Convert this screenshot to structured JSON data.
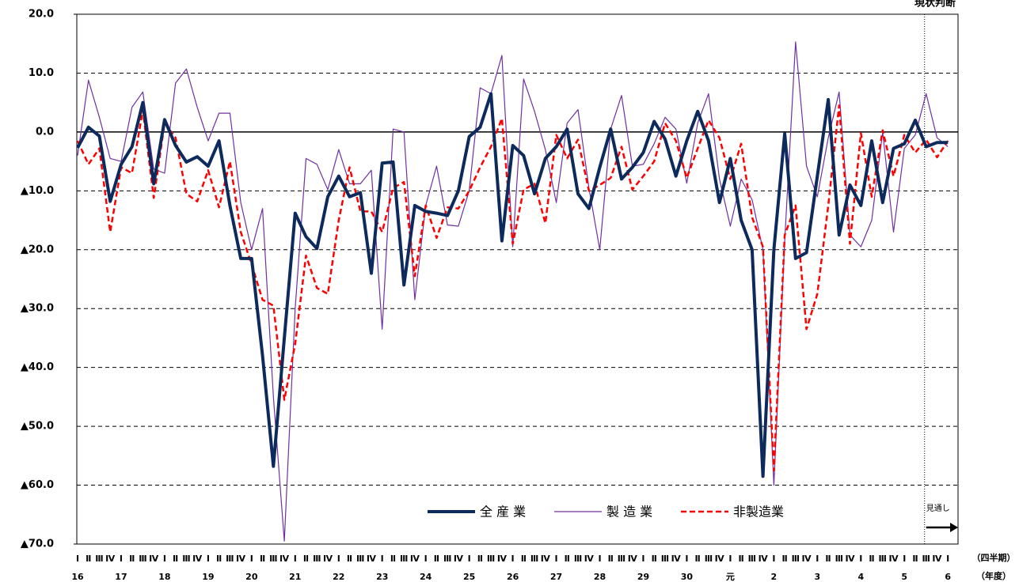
{
  "chart_data": {
    "type": "line",
    "annotations": {
      "current": "現状判断",
      "forecast": "見通し"
    },
    "x_label_quarter": "（四半期）",
    "x_label_year": "（年度）",
    "categories": [
      "Ⅰ",
      "Ⅱ",
      "Ⅲ",
      "Ⅳ",
      "Ⅰ",
      "Ⅱ",
      "Ⅲ",
      "Ⅳ",
      "Ⅰ",
      "Ⅱ",
      "Ⅲ",
      "Ⅳ",
      "Ⅰ",
      "Ⅱ",
      "Ⅲ",
      "Ⅳ",
      "Ⅰ",
      "Ⅱ",
      "Ⅲ",
      "Ⅳ",
      "Ⅰ",
      "Ⅱ",
      "Ⅲ",
      "Ⅳ",
      "Ⅰ",
      "Ⅱ",
      "Ⅲ",
      "Ⅳ",
      "Ⅰ",
      "Ⅱ",
      "Ⅲ",
      "Ⅳ",
      "Ⅰ",
      "Ⅱ",
      "Ⅲ",
      "Ⅳ",
      "Ⅰ",
      "Ⅱ",
      "Ⅲ",
      "Ⅳ",
      "Ⅰ",
      "Ⅱ",
      "Ⅲ",
      "Ⅳ",
      "Ⅰ",
      "Ⅱ",
      "Ⅲ",
      "Ⅳ",
      "Ⅰ",
      "Ⅱ",
      "Ⅲ",
      "Ⅳ",
      "Ⅰ",
      "Ⅱ",
      "Ⅲ",
      "Ⅳ",
      "Ⅰ",
      "Ⅱ",
      "Ⅲ",
      "Ⅳ",
      "Ⅰ",
      "Ⅱ",
      "Ⅲ",
      "Ⅳ",
      "Ⅰ",
      "Ⅱ",
      "Ⅲ",
      "Ⅳ",
      "Ⅰ",
      "Ⅱ",
      "Ⅲ",
      "Ⅳ",
      "Ⅰ",
      "Ⅱ",
      "Ⅲ",
      "Ⅳ",
      "Ⅰ",
      "Ⅱ",
      "Ⅲ",
      "Ⅳ",
      "Ⅰ"
    ],
    "years": [
      "16",
      "17",
      "18",
      "19",
      "20",
      "21",
      "22",
      "23",
      "24",
      "25",
      "26",
      "27",
      "28",
      "29",
      "30",
      "元",
      "2",
      "3",
      "4",
      "5",
      "6"
    ],
    "ylim": [
      -70,
      20
    ],
    "yticks": [
      {
        "value": -70,
        "label": "▲70.0"
      },
      {
        "value": -60,
        "label": "▲60.0"
      },
      {
        "value": -50,
        "label": "▲50.0"
      },
      {
        "value": -40,
        "label": "▲40.0"
      },
      {
        "value": -30,
        "label": "▲30.0"
      },
      {
        "value": -20,
        "label": "▲20.0"
      },
      {
        "value": -10,
        "label": "▲10.0"
      },
      {
        "value": 0,
        "label": "0.0"
      },
      {
        "value": 10,
        "label": "10.0"
      },
      {
        "value": 20,
        "label": "20.0"
      }
    ],
    "grid": true,
    "series": [
      {
        "name": "全 産 業",
        "color": "#0d2a5c",
        "linestyle": "solid",
        "values": [
          -2.7,
          0.8,
          -0.7,
          -11.8,
          -5.5,
          -2.5,
          5.0,
          -8.8,
          2.1,
          -2.3,
          -5.1,
          -4.2,
          -5.8,
          -1.5,
          -12.5,
          -21.5,
          -21.5,
          -38,
          -56.8,
          -35,
          -13.8,
          -17.8,
          -19.8,
          -11,
          -7.5,
          -11,
          -10.3,
          -24,
          -5.3,
          -5.1,
          -26,
          -12.5,
          -13.5,
          -13.8,
          -14.2,
          -10,
          -0.8,
          0.8,
          6.5,
          -18.5,
          -2.3,
          -4,
          -10.5,
          -4.5,
          -2.5,
          0.5,
          -10.5,
          -13,
          -6,
          0.5,
          -8,
          -6,
          -3.5,
          1.8,
          -1.2,
          -7.5,
          -1.5,
          3.5,
          -1.5,
          -12,
          -4.5,
          -15,
          -20,
          -58.5,
          -20,
          -0.3,
          -21.5,
          -20.5,
          -7.5,
          5.5,
          -17.5,
          -9,
          -12.5,
          -1.5,
          -12,
          -2.8,
          -2,
          2,
          -2.5,
          -1.8,
          -1.8
        ]
      },
      {
        "name": "製 造 業",
        "color": "#7030a0",
        "linestyle": "thin",
        "values": [
          -4,
          8.8,
          2.5,
          -4.5,
          -5,
          4.2,
          6.8,
          -6.3,
          -7,
          8.3,
          10.7,
          4.2,
          -1.5,
          3.2,
          3.2,
          -12,
          -20,
          -13,
          -45,
          -69.5,
          -30,
          -4.5,
          -5.5,
          -9.8,
          -3,
          -8.8,
          -8.8,
          -6.5,
          -33.5,
          0.5,
          0,
          -28.5,
          -12.5,
          -5.8,
          -15.8,
          -16,
          -10,
          7.5,
          6.5,
          13,
          -19.5,
          9,
          3.5,
          -3,
          -12,
          1.5,
          3.8,
          -9.5,
          -20,
          0.5,
          6.2,
          -5.8,
          -5.5,
          -2,
          2.5,
          0.5,
          -8.7,
          1.5,
          6.5,
          -8,
          -16,
          -8,
          -11.5,
          -20,
          -60,
          -18.5,
          15.3,
          -5.8,
          -11,
          -1,
          6.8,
          -17.5,
          -19.5,
          -15,
          0,
          -17,
          -2.8,
          -0.5,
          6.5,
          -1,
          -2.5
        ]
      },
      {
        "name": "非製造業",
        "color": "#ff0000",
        "linestyle": "dashed",
        "values": [
          -1.5,
          -5.5,
          -2.8,
          -17,
          -6,
          -7,
          3.7,
          -11.2,
          1.5,
          -1,
          -10.5,
          -11.8,
          -6.5,
          -12.8,
          -5,
          -17,
          -22.5,
          -28.5,
          -29.5,
          -45.5,
          -36,
          -21,
          -26.5,
          -27.5,
          -15,
          -6,
          -13.5,
          -13.5,
          -17,
          -9.5,
          -8.5,
          -24.5,
          -12.5,
          -18,
          -12.8,
          -13,
          -10,
          -6,
          -2.5,
          2.3,
          -19,
          -9.8,
          -8.8,
          -15.5,
          -0.5,
          -4.5,
          -1.3,
          -10,
          -9,
          -7.8,
          -2.5,
          -9.8,
          -7.5,
          -5,
          1.5,
          -1.5,
          -7.8,
          -2.8,
          2,
          -1,
          -8,
          -2,
          -14.5,
          -19.5,
          -57.5,
          -17.5,
          -12.5,
          -33.5,
          -27.5,
          -12.5,
          4.5,
          -19,
          -0.2,
          -11,
          0.3,
          -7.5,
          -0.5,
          -3.5,
          -1.3,
          -4.3,
          -1.5
        ]
      }
    ]
  }
}
